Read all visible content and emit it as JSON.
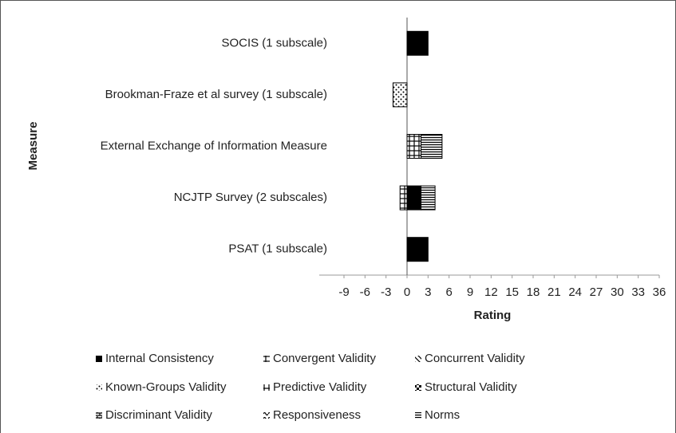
{
  "chart_data": {
    "type": "stacked-bar-horizontal",
    "x_label": "Rating",
    "y_label": "Measure",
    "categories": [
      "SOCIS (1 subscale)",
      "Brookman-Fraze et al survey (1 subscale)",
      "External Exchange of Information Measure",
      "NCJTP Survey (2 subscales)",
      "PSAT (1 subscale)"
    ],
    "xlim": [
      -9,
      36
    ],
    "xticks": [
      -9,
      -6,
      -3,
      0,
      3,
      6,
      9,
      12,
      15,
      18,
      21,
      24,
      27,
      30,
      33,
      36
    ],
    "legend": "bottom",
    "series": [
      {
        "name": "Internal Consistency",
        "color": "#000000",
        "pattern": "solid",
        "values": [
          3,
          null,
          null,
          2,
          3
        ]
      },
      {
        "name": "Convergent Validity",
        "color": "#000000",
        "pattern": "grid",
        "values": [
          null,
          null,
          2,
          -1,
          null
        ]
      },
      {
        "name": "Concurrent Validity",
        "color": "#000000",
        "pattern": "diagonal",
        "values": [
          null,
          null,
          null,
          null,
          null
        ]
      },
      {
        "name": "Known-Groups Validity",
        "color": "#000000",
        "pattern": "dots",
        "values": [
          null,
          -2,
          null,
          null,
          null
        ]
      },
      {
        "name": "Predictive Validity",
        "color": "#000000",
        "pattern": "corner",
        "values": [
          null,
          null,
          null,
          null,
          null
        ]
      },
      {
        "name": "Structural Validity",
        "color": "#000000",
        "pattern": "checker",
        "values": [
          null,
          null,
          null,
          null,
          null
        ]
      },
      {
        "name": "Discriminant Validity",
        "color": "#000000",
        "pattern": "brick",
        "values": [
          null,
          null,
          null,
          null,
          null
        ]
      },
      {
        "name": "Responsiveness",
        "color": "#000000",
        "pattern": "wave",
        "values": [
          null,
          null,
          null,
          null,
          null
        ]
      },
      {
        "name": "Norms",
        "color": "#000000",
        "pattern": "hlines",
        "values": [
          null,
          null,
          3,
          2,
          null
        ]
      }
    ]
  }
}
